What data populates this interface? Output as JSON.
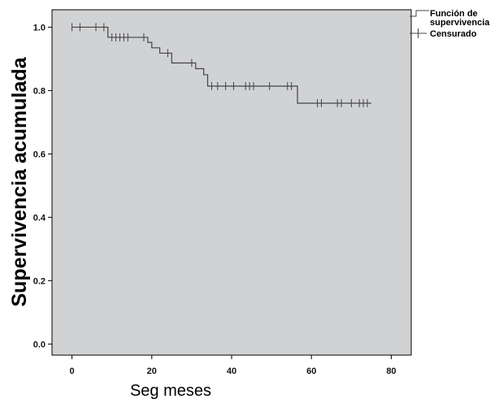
{
  "chart_data": {
    "type": "line",
    "subtype": "kaplan-meier survival curve",
    "xlabel": "Seg meses",
    "ylabel": "Supervivencia acumulada",
    "xlim": [
      -5,
      85
    ],
    "ylim": [
      -0.035,
      1.055
    ],
    "xticks": [
      0,
      20,
      40,
      60,
      80
    ],
    "xtick_labels": [
      "0",
      "20",
      "40",
      "60",
      "80"
    ],
    "yticks": [
      0.0,
      0.2,
      0.4,
      0.6,
      0.8,
      1.0
    ],
    "ytick_labels": [
      "0.0",
      "0.2",
      "0.4",
      "0.6",
      "0.8",
      "1.0"
    ],
    "grid": false,
    "plot_background": "#d1d2d4",
    "line_color": "#444444",
    "legend_position": "outside-top-right",
    "legend": [
      {
        "label_lines": [
          "Función de",
          "supervivencia"
        ],
        "marker": "step"
      },
      {
        "label_lines": [
          "Censurado"
        ],
        "marker": "plus"
      }
    ],
    "series": [
      {
        "name": "Función de supervivencia",
        "x": [
          0,
          9,
          19,
          20,
          22,
          25,
          31,
          33,
          34,
          56.5,
          75
        ],
        "y": [
          1.0,
          0.968,
          0.952,
          0.935,
          0.918,
          0.887,
          0.869,
          0.85,
          0.814,
          0.76,
          0.76
        ]
      },
      {
        "name": "Censurado",
        "x": [
          0,
          2,
          6,
          8,
          10,
          11,
          12,
          13,
          14,
          18,
          24,
          30,
          35,
          36.5,
          38.5,
          40.5,
          43.5,
          44.5,
          45.5,
          49.5,
          54,
          55,
          61.5,
          62.5,
          66.5,
          67.5,
          70,
          72,
          73,
          74
        ],
        "y": [
          1.0,
          1.0,
          1.0,
          1.0,
          0.968,
          0.968,
          0.968,
          0.968,
          0.968,
          0.968,
          0.918,
          0.887,
          0.814,
          0.814,
          0.814,
          0.814,
          0.814,
          0.814,
          0.814,
          0.814,
          0.814,
          0.814,
          0.76,
          0.76,
          0.76,
          0.76,
          0.76,
          0.76,
          0.76,
          0.76
        ]
      }
    ]
  }
}
